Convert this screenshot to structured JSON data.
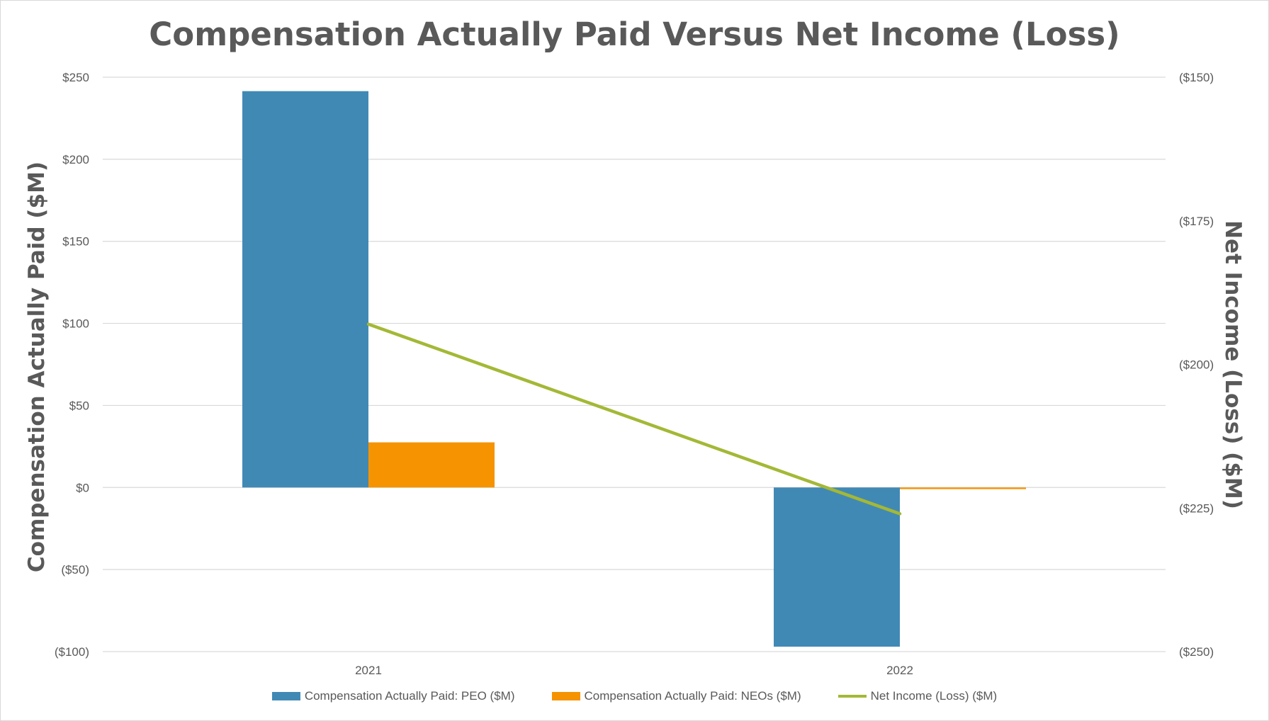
{
  "chart_data": {
    "type": "bar",
    "title": "Compensation Actually Paid Versus Net Income (Loss)",
    "categories": [
      "2021",
      "2022"
    ],
    "series": [
      {
        "name": "Compensation Actually Paid: PEO ($M)",
        "type": "bar",
        "axis": "left",
        "color": "#4189b5",
        "values": [
          241.5,
          -97
        ]
      },
      {
        "name": "Compensation Actually Paid: NEOs ($M)",
        "type": "bar",
        "axis": "left",
        "color": "#f59300",
        "values": [
          27.5,
          -1
        ]
      },
      {
        "name": "Net Income (Loss) ($M)",
        "type": "line",
        "axis": "right",
        "color": "#a4b836",
        "values": [
          -193,
          -226
        ]
      }
    ],
    "ylabel": "Compensation  Actually Paid ($M)",
    "y2label": "Net Income (Loss) ($M)",
    "ylim": [
      -100,
      250
    ],
    "y2lim": [
      -250,
      -150
    ],
    "yticks": [
      {
        "value": 250,
        "label": "$250"
      },
      {
        "value": 200,
        "label": "$200"
      },
      {
        "value": 150,
        "label": "$150"
      },
      {
        "value": 100,
        "label": "$100"
      },
      {
        "value": 50,
        "label": "$50"
      },
      {
        "value": 0,
        "label": "$0"
      },
      {
        "value": -50,
        "label": "($50)"
      },
      {
        "value": -100,
        "label": "($100)"
      }
    ],
    "y2ticks": [
      {
        "value": -150,
        "label": "($150)"
      },
      {
        "value": -175,
        "label": "($175)"
      },
      {
        "value": -200,
        "label": "($200)"
      },
      {
        "value": -225,
        "label": "($225)"
      },
      {
        "value": -250,
        "label": "($250)"
      }
    ],
    "grid": true,
    "legend_position": "bottom"
  }
}
